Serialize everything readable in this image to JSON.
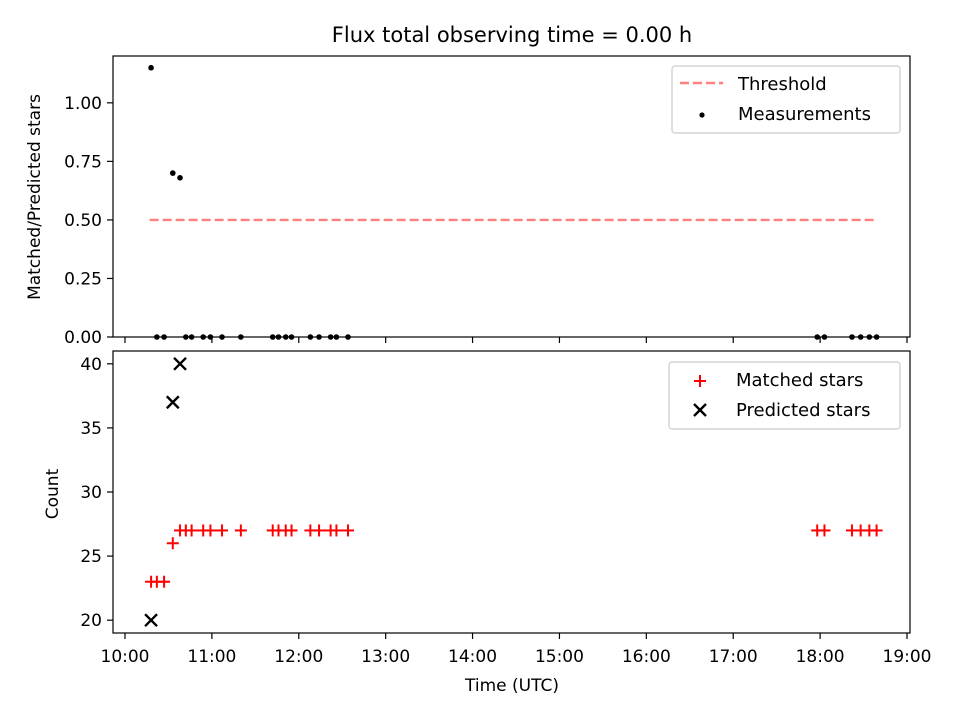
{
  "chart_data": [
    {
      "type": "scatter",
      "title": "Flux total observing time = 0.00 h",
      "ylabel": "Matched/Predicted stars",
      "xlabel": "",
      "xlim": [
        "10:00",
        "19:00"
      ],
      "ylim": [
        0,
        1.2
      ],
      "yticks": [
        "0.00",
        "0.25",
        "0.50",
        "0.75",
        "1.00"
      ],
      "legend_position": "top-right",
      "grid": false,
      "series": [
        {
          "name": "Threshold",
          "kind": "dashed-line",
          "color": "#ff7f7f",
          "x": [
            "10:17",
            "18:39"
          ],
          "y": [
            0.5,
            0.5
          ]
        },
        {
          "name": "Measurements",
          "kind": "dot",
          "color": "#000000",
          "x": [
            "10:18",
            "10:22",
            "10:27",
            "10:33",
            "10:38",
            "10:42",
            "10:46",
            "10:54",
            "10:59",
            "11:07",
            "11:20",
            "11:42",
            "11:46",
            "11:51",
            "11:55",
            "12:08",
            "12:14",
            "12:22",
            "12:26",
            "12:34",
            "17:58",
            "18:03",
            "18:22",
            "18:28",
            "18:34",
            "18:39"
          ],
          "y": [
            1.15,
            0.0,
            0.0,
            0.7,
            0.68,
            0.0,
            0.0,
            0.0,
            0.0,
            0.0,
            0.0,
            0.0,
            0.0,
            0.0,
            0.0,
            0.0,
            0.0,
            0.0,
            0.0,
            0.0,
            0.0,
            0.0,
            0.0,
            0.0,
            0.0,
            0.0
          ]
        }
      ]
    },
    {
      "type": "scatter",
      "title": "",
      "ylabel": "Count",
      "xlabel": "Time (UTC)",
      "xlim": [
        "10:00",
        "19:00"
      ],
      "ylim": [
        19,
        41
      ],
      "yticks": [
        "20",
        "25",
        "30",
        "35",
        "40"
      ],
      "xticks": [
        "10:00",
        "11:00",
        "12:00",
        "13:00",
        "14:00",
        "15:00",
        "16:00",
        "17:00",
        "18:00",
        "19:00"
      ],
      "legend_position": "top-right",
      "grid": false,
      "series": [
        {
          "name": "Matched stars",
          "kind": "plus",
          "color": "#ff0000",
          "x": [
            "10:18",
            "10:22",
            "10:27",
            "10:33",
            "10:38",
            "10:42",
            "10:46",
            "10:54",
            "10:59",
            "11:07",
            "11:20",
            "11:42",
            "11:46",
            "11:51",
            "11:55",
            "12:08",
            "12:14",
            "12:22",
            "12:26",
            "12:34",
            "17:58",
            "18:03",
            "18:22",
            "18:28",
            "18:34",
            "18:39"
          ],
          "y": [
            23,
            23,
            23,
            26,
            27,
            27,
            27,
            27,
            27,
            27,
            27,
            27,
            27,
            27,
            27,
            27,
            27,
            27,
            27,
            27,
            27,
            27,
            27,
            27,
            27,
            27
          ]
        },
        {
          "name": "Predicted stars",
          "kind": "x",
          "color": "#000000",
          "x": [
            "10:18",
            "10:33",
            "10:38"
          ],
          "y": [
            20,
            37,
            40
          ]
        }
      ]
    }
  ]
}
